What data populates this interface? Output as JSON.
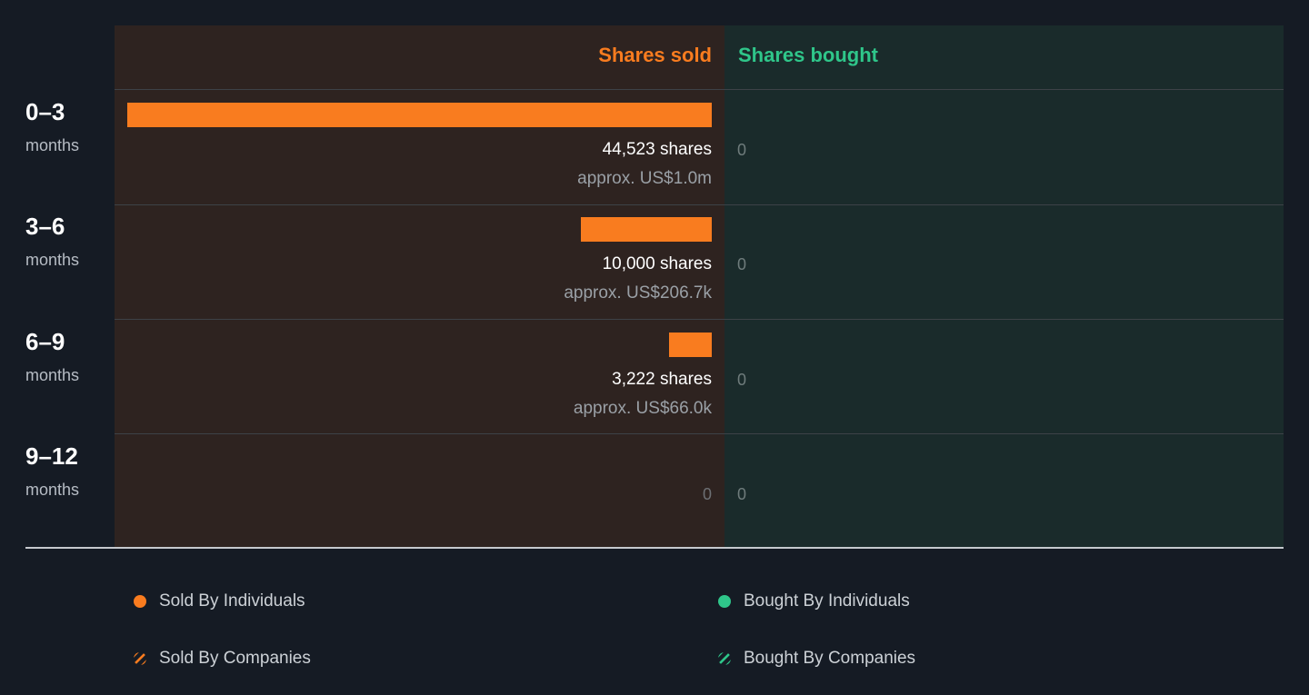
{
  "colors": {
    "sold": "#f97c1f",
    "bought": "#2fc68a",
    "sold_panel": "#2e2320",
    "bought_panel": "#1a2b2b"
  },
  "headers": {
    "sold": "Shares sold",
    "bought": "Shares bought"
  },
  "chart_data": {
    "type": "bar",
    "categories": [
      "0–3 months",
      "3–6 months",
      "6–9 months",
      "9–12 months"
    ],
    "series": [
      {
        "name": "Shares sold",
        "values": [
          44523,
          10000,
          3222,
          0
        ]
      },
      {
        "name": "Shares bought",
        "values": [
          0,
          0,
          0,
          0
        ]
      }
    ]
  },
  "rows": [
    {
      "range": "0–3",
      "unit": "months",
      "sold_shares": 44523,
      "sold_label": "44,523 shares",
      "sold_value": "approx. US$1.0m",
      "sold_zero": "",
      "bought": "0"
    },
    {
      "range": "3–6",
      "unit": "months",
      "sold_shares": 10000,
      "sold_label": "10,000 shares",
      "sold_value": "approx. US$206.7k",
      "sold_zero": "",
      "bought": "0"
    },
    {
      "range": "6–9",
      "unit": "months",
      "sold_shares": 3222,
      "sold_label": "3,222 shares",
      "sold_value": "approx. US$66.0k",
      "sold_zero": "",
      "bought": "0"
    },
    {
      "range": "9–12",
      "unit": "months",
      "sold_shares": 0,
      "sold_label": "",
      "sold_value": "",
      "sold_zero": "0",
      "bought": "0"
    }
  ],
  "legend": [
    {
      "label": "Sold By Individuals",
      "marker": "dot",
      "color": "#f97c1f"
    },
    {
      "label": "Bought By Individuals",
      "marker": "dot",
      "color": "#2fc68a"
    },
    {
      "label": "Sold By Companies",
      "marker": "hatch",
      "color": "#f97c1f"
    },
    {
      "label": "Bought By Companies",
      "marker": "hatch",
      "color": "#2fc68a"
    }
  ]
}
